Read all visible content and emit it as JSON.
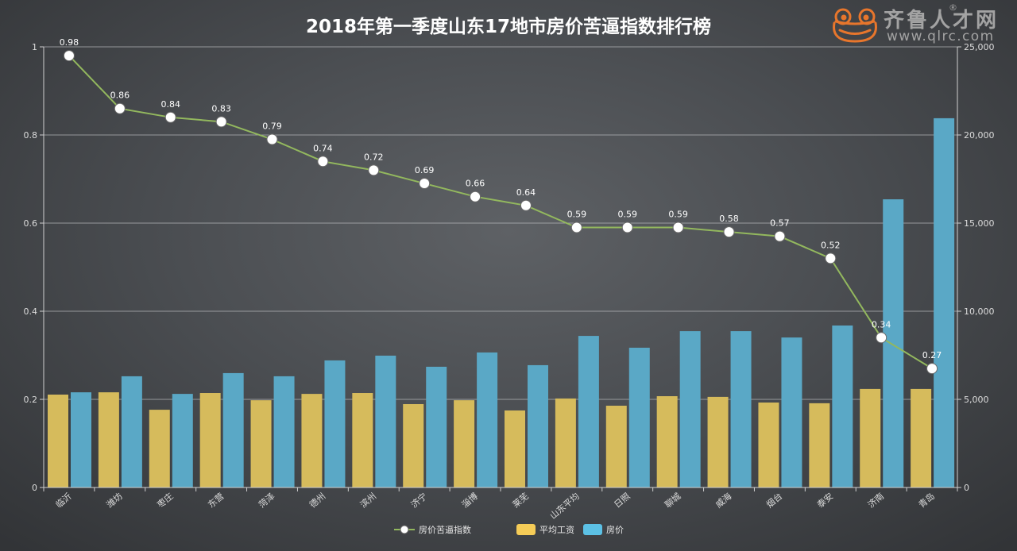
{
  "title": "2018年第一季度山东17地市房价苦逼指数排行榜",
  "logo": {
    "name": "齐鲁人才网",
    "reg": "®",
    "url": "www.qlrc.com"
  },
  "colors": {
    "line": "#93b85e",
    "point_fill": "#ffffff",
    "wage_bar": "#d6bb5c",
    "price_bar": "#5aa8c6",
    "wage_legend": "#f5cc57",
    "price_legend": "#5cc1e5",
    "logo": "#e8762c",
    "logo_text": "#a3a3a3",
    "grid": "#b9bbbd",
    "axis": "#cfcfcf"
  },
  "chart_data": {
    "type": "bar",
    "categories": [
      "临沂",
      "潍坊",
      "枣庄",
      "东营",
      "菏泽",
      "德州",
      "滨州",
      "济宁",
      "淄博",
      "莱芜",
      "山东平均",
      "日照",
      "聊城",
      "威海",
      "烟台",
      "泰安",
      "济南",
      "青岛"
    ],
    "series": [
      {
        "name": "房价苦逼指数",
        "type": "line",
        "axis": "left",
        "values": [
          0.98,
          0.86,
          0.84,
          0.83,
          0.79,
          0.74,
          0.72,
          0.69,
          0.66,
          0.64,
          0.59,
          0.59,
          0.59,
          0.58,
          0.57,
          0.52,
          0.34,
          0.27
        ]
      },
      {
        "name": "平均工资",
        "type": "bar",
        "axis": "right",
        "values": [
          5270,
          5400,
          4410,
          5360,
          4950,
          5310,
          5360,
          4730,
          4950,
          4370,
          5050,
          4640,
          5180,
          5140,
          4820,
          4780,
          5590,
          5590
        ]
      },
      {
        "name": "房价",
        "type": "bar",
        "axis": "right",
        "values": [
          5400,
          6310,
          5310,
          6490,
          6310,
          7210,
          7480,
          6850,
          7660,
          6940,
          8600,
          7930,
          8870,
          8870,
          8510,
          9190,
          16350,
          20950
        ]
      }
    ],
    "y_left": {
      "range": [
        0,
        1
      ],
      "ticks": [
        0,
        0.2,
        0.4,
        0.6,
        0.8,
        1
      ],
      "tick_labels": [
        "0",
        "0.2",
        "0.4",
        "0.6",
        "0.8",
        "1"
      ]
    },
    "y_right": {
      "range": [
        0,
        25000
      ],
      "ticks": [
        0,
        5000,
        10000,
        15000,
        20000,
        25000
      ],
      "tick_labels": [
        "0",
        "5,000",
        "10,000",
        "15,000",
        "20,000",
        "25,000"
      ]
    },
    "data_labels": "line values, 2 decimals",
    "grid": true,
    "legend_position": "bottom"
  }
}
